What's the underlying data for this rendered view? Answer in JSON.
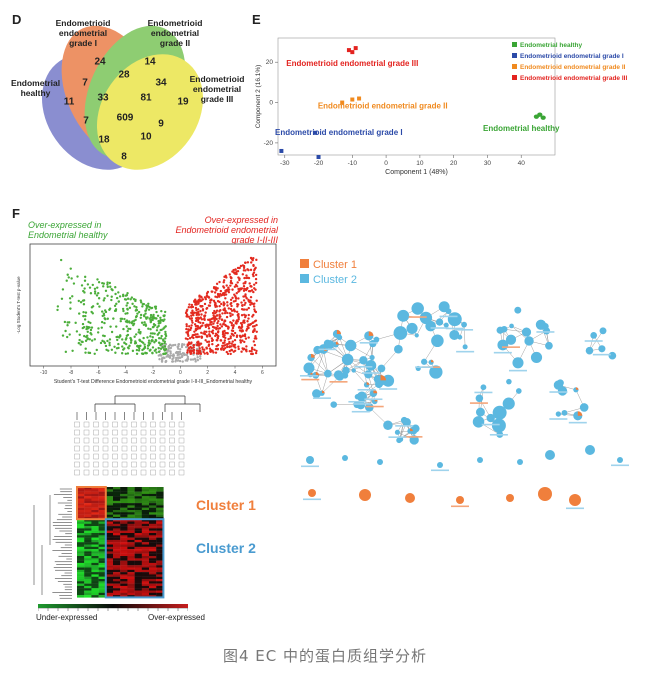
{
  "caption": "图4 EC 中的蛋白质组学分析",
  "panel_d": {
    "letter": "D",
    "sets": [
      "Endometrial healthy",
      "Endometrioid endometrial grade I",
      "Endometrioid endometrial grade II",
      "Endometrioid endometrial grade III"
    ],
    "set_label_lines": {
      "healthy": [
        "Endometrial",
        "healthy"
      ],
      "g1": [
        "Endometrioid",
        "endometrial",
        "grade I"
      ],
      "g2": [
        "Endometrioid",
        "endometrial",
        "grade II"
      ],
      "g3": [
        "Endometrioid",
        "endometrial",
        "grade III"
      ]
    },
    "counts": {
      "g1_only": "24",
      "g2_only": "14",
      "healthy_only": "11",
      "g3_only": "19",
      "healthy_g1": "7",
      "g1_g2": "28",
      "g2_g3": "34",
      "healthy_g1_g2": "33",
      "g1_g2_g3": "81",
      "healthy_g2": "7",
      "all": "609",
      "healthy_g3": "18",
      "g1_g3": "9",
      "healthy_g2_g3": "10",
      "healthy_g1_g3": "8"
    },
    "colors": {
      "healthy": "#6a6fc4",
      "g1": "#e8743b",
      "g2": "#6fbf4b",
      "g3": "#e9e23a"
    }
  },
  "panel_e": {
    "letter": "E",
    "chart_data": {
      "type": "scatter",
      "xlabel": "Component 1 (48%)",
      "ylabel": "Component 2 (16.1%)",
      "xticks": [
        "-30",
        "-20",
        "-10",
        "0",
        "10",
        "20",
        "30",
        "40"
      ],
      "yticks": [
        "20",
        "0",
        "-20"
      ],
      "xlim": [
        -32,
        50
      ],
      "ylim": [
        -26,
        32
      ],
      "series": [
        {
          "name": "Endometrial healthy",
          "color": "#3aa535",
          "points": [
            [
              44.5,
              -7
            ],
            [
              45.5,
              -6
            ],
            [
              46.5,
              -7.5
            ]
          ]
        },
        {
          "name": "Endometrioid endometrial grade I",
          "color": "#2b4aa8",
          "points": [
            [
              -31,
              -24
            ],
            [
              -21,
              -15
            ],
            [
              -20,
              -27
            ]
          ]
        },
        {
          "name": "Endometrioid endometrial grade II",
          "color": "#f08a1f",
          "points": [
            [
              -13,
              0
            ],
            [
              -10,
              1.5
            ],
            [
              -8,
              2
            ]
          ]
        },
        {
          "name": "Endometrioid endometrial grade III",
          "color": "#e3231f",
          "points": [
            [
              -11,
              26
            ],
            [
              -10,
              25
            ],
            [
              -9,
              27
            ]
          ]
        }
      ],
      "annotations": [
        "Endometrioid endometrial grade III",
        "Endometrioid endometrial grade II",
        "Endometrioid endometrial grade I",
        "Endometrial healthy"
      ]
    }
  },
  "panel_f": {
    "letter": "F",
    "over_healthy": [
      "Over-expressed in",
      "Endometrial healthy"
    ],
    "over_grade": [
      "Over-expressed in",
      "Endometrioid endometrial",
      "grade I-II-III"
    ],
    "volcano_xlabel": "Student's T-test Difference Endometrioid endometrial grade I-II-III_Endometrial healthy",
    "volcano_ylabel": "-Log Student's T-test p-value",
    "volcano_xticks": [
      "-10",
      "-8",
      "-6",
      "-4",
      "-2",
      "0",
      "2",
      "4",
      "6"
    ],
    "cluster1": "Cluster 1",
    "cluster2": "Cluster 2",
    "legend_under": "Under-expressed",
    "legend_over": "Over-expressed",
    "network_legend": [
      "Cluster 1",
      "Cluster 2"
    ],
    "network_colors": {
      "c1": "#f07f3c",
      "c2": "#5bb8e0"
    }
  }
}
